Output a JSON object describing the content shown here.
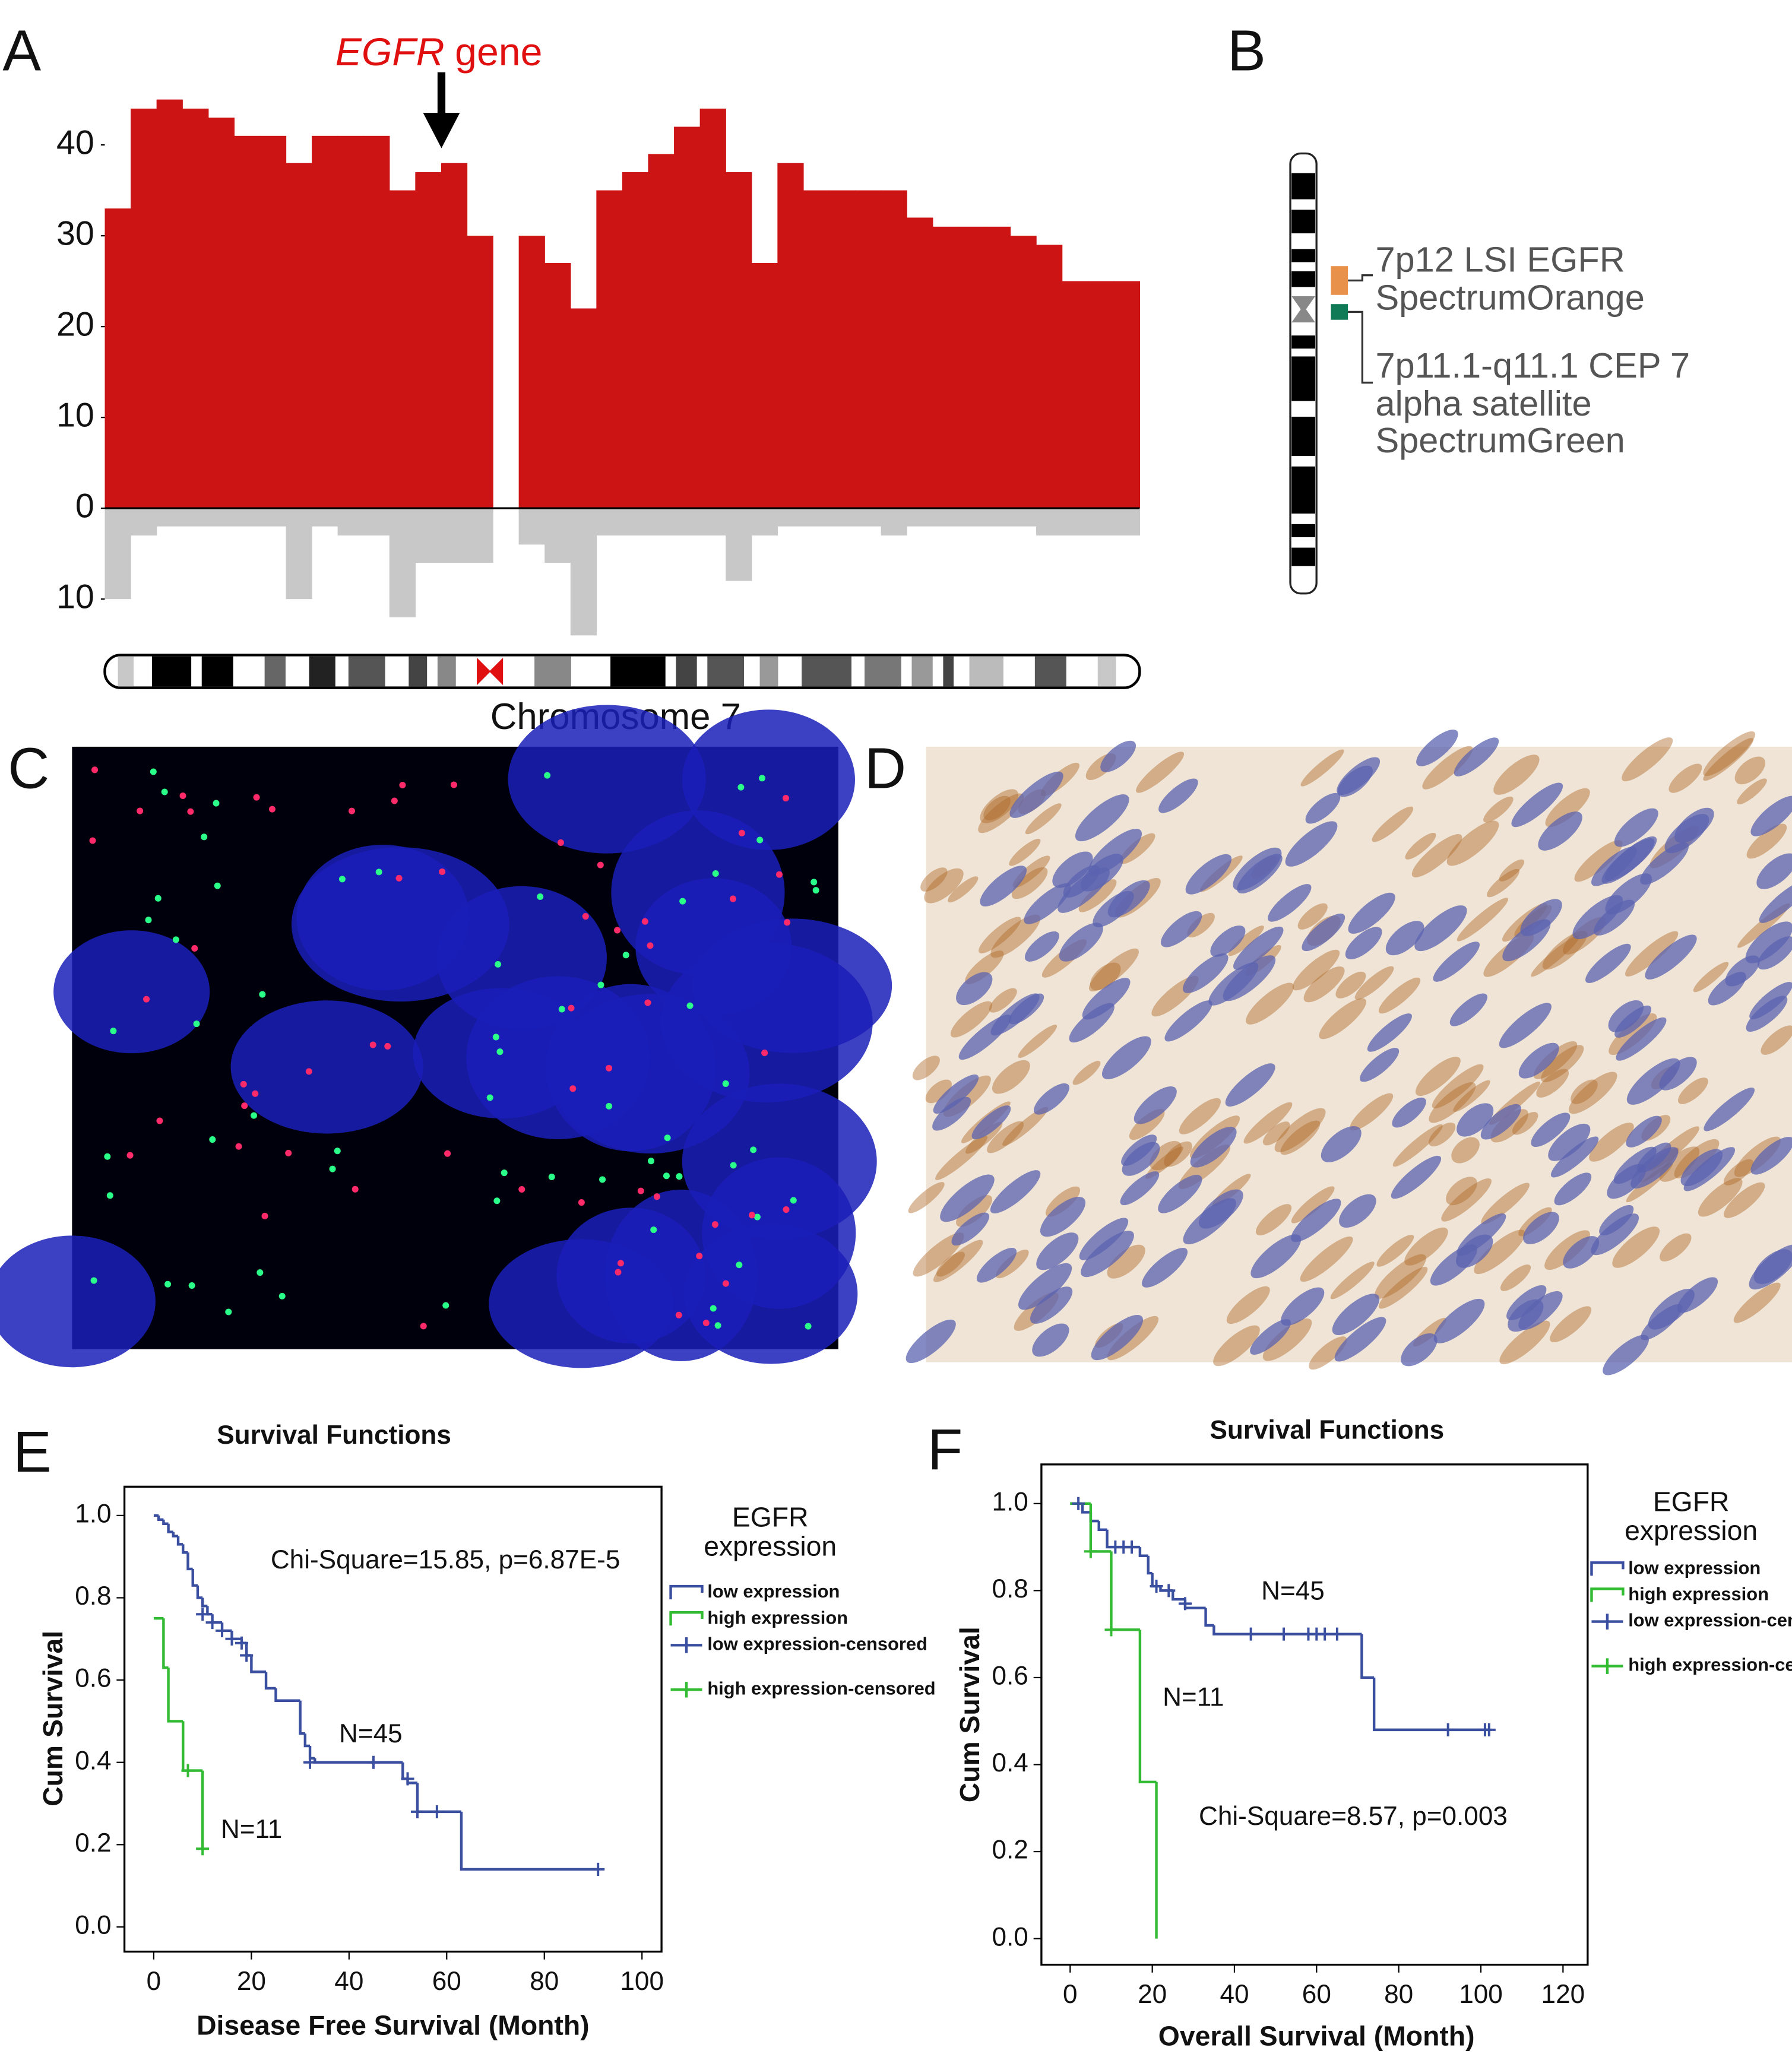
{
  "panel_labels": [
    "A",
    "B",
    "C",
    "D",
    "E",
    "F"
  ],
  "probe_diagram": {
    "probes": [
      {
        "color": "#e8914a",
        "lines": [
          "7p12 LSI EGFR",
          "SpectrumOrange"
        ]
      },
      {
        "color": "#0f7a55",
        "lines": [
          "7p11.1-q11.1 CEP 7",
          "alpha satellite",
          "SpectrumGreen"
        ]
      }
    ]
  },
  "chart_data": [
    {
      "type": "bar",
      "annotation": {
        "emphasis": "EGFR",
        "text": "gene"
      },
      "xlabel": "Chromosome 7",
      "categories": [
        null,
        null,
        null,
        null,
        null,
        null,
        null,
        null,
        null,
        null,
        null,
        null,
        null,
        null,
        null,
        null,
        null,
        null,
        null,
        null,
        null,
        null,
        null,
        null,
        null,
        null,
        null,
        null,
        null,
        null,
        null,
        null,
        null,
        null,
        null,
        null,
        null,
        null,
        null,
        null
      ],
      "series": [
        {
          "color": "#cc1414",
          "values": [
            33,
            44,
            45,
            44,
            43,
            41,
            41,
            38,
            41,
            41,
            41,
            35,
            37,
            38,
            30,
            0,
            30,
            27,
            22,
            35,
            37,
            39,
            42,
            44,
            37,
            27,
            38,
            35,
            35,
            35,
            35,
            32,
            31,
            31,
            31,
            30,
            29,
            25,
            25,
            25
          ]
        },
        {
          "color": "#c8c8c8",
          "values": [
            -10,
            -3,
            -2,
            -2,
            -2,
            -2,
            -2,
            -10,
            -2,
            -3,
            -3,
            -12,
            -6,
            -6,
            -6,
            0,
            -4,
            -6,
            -14,
            -3,
            -3,
            -3,
            -3,
            -3,
            -8,
            -3,
            -2,
            -2,
            -2,
            -2,
            -3,
            -2,
            -2,
            -2,
            -2,
            -2,
            -3,
            -3,
            -3,
            -3
          ]
        }
      ],
      "ylim": [
        -14,
        48
      ],
      "yticks": [
        {
          "value": -10,
          "label": "10"
        },
        0,
        10,
        20,
        30,
        40
      ]
    },
    {
      "type": "line",
      "step": true,
      "title": "Survival Functions",
      "xlabel": "Disease Free Survival (Month)",
      "ylabel": "Cum Survival",
      "legend_title": [
        "EGFR",
        "expression"
      ],
      "legend": "outside-right",
      "annotations": [
        "Chi-Square=15.85, p=6.87E-5",
        "N=45",
        "N=11"
      ],
      "xlim": [
        -6,
        104
      ],
      "ylim": [
        -0.06,
        1.07
      ],
      "xticks": [
        0,
        20,
        40,
        60,
        80,
        100
      ],
      "yticks": [
        {
          "value": 0,
          "label": "0.0"
        },
        0.2,
        0.4,
        0.6,
        0.8,
        {
          "value": 1,
          "label": "1.0"
        }
      ],
      "series": [
        {
          "name": "low expression",
          "color": "#3a4fa0",
          "x": [
            0,
            1,
            2,
            3,
            4,
            5,
            6,
            7,
            8,
            9,
            10,
            11,
            12,
            14,
            16,
            18,
            19,
            20,
            23,
            25,
            30,
            31,
            32,
            33,
            51,
            52,
            54,
            63,
            91
          ],
          "values": [
            1.0,
            0.99,
            0.98,
            0.96,
            0.95,
            0.93,
            0.91,
            0.87,
            0.83,
            0.8,
            0.78,
            0.76,
            0.74,
            0.72,
            0.7,
            0.69,
            0.66,
            0.62,
            0.58,
            0.55,
            0.47,
            0.44,
            0.41,
            0.4,
            0.36,
            0.35,
            0.28,
            0.14,
            0.14
          ]
        },
        {
          "name": "high expression",
          "color": "#33bb33",
          "x": [
            0,
            2,
            3,
            6,
            10
          ],
          "values": [
            0.75,
            0.63,
            0.5,
            0.38,
            0.19
          ]
        },
        {
          "name": "low expression-censored",
          "color": "#3a4fa0",
          "marker": "+",
          "x": [
            10,
            12,
            14,
            16,
            18,
            19,
            32,
            45,
            52,
            54,
            58,
            91
          ],
          "values": [
            0.76,
            0.74,
            0.72,
            0.7,
            0.69,
            0.66,
            0.4,
            0.4,
            0.36,
            0.28,
            0.28,
            0.14
          ]
        },
        {
          "name": "high expression-censored",
          "color": "#33bb33",
          "marker": "+",
          "x": [
            7,
            10
          ],
          "values": [
            0.38,
            0.19
          ]
        }
      ]
    },
    {
      "type": "line",
      "step": true,
      "title": "Survival Functions",
      "xlabel": "Overall Survival (Month)",
      "ylabel": "Cum Survival",
      "legend_title": [
        "EGFR",
        "expression"
      ],
      "legend": "outside-right",
      "annotations": [
        "N=45",
        "N=11",
        "Chi-Square=8.57, p=0.003"
      ],
      "xlim": [
        -7,
        126
      ],
      "ylim": [
        -0.06,
        1.09
      ],
      "xticks": [
        0,
        20,
        40,
        60,
        80,
        100,
        120
      ],
      "yticks": [
        {
          "value": 0,
          "label": "0.0"
        },
        0.2,
        0.4,
        0.6,
        0.8,
        {
          "value": 1,
          "label": "1.0"
        }
      ],
      "series": [
        {
          "name": "low expression",
          "color": "#3a4fa0",
          "x": [
            0,
            3,
            5,
            7,
            9,
            17,
            19,
            20,
            22,
            25,
            28,
            33,
            35,
            71,
            74,
            102
          ],
          "values": [
            1.0,
            0.98,
            0.96,
            0.94,
            0.9,
            0.88,
            0.84,
            0.81,
            0.8,
            0.78,
            0.76,
            0.72,
            0.7,
            0.6,
            0.48,
            0.48
          ]
        },
        {
          "name": "high expression",
          "color": "#33bb33",
          "x": [
            0,
            5,
            10,
            17,
            21
          ],
          "values": [
            1.0,
            0.89,
            0.71,
            0.36,
            0.0
          ]
        },
        {
          "name": "low expression-censored",
          "color": "#3a4fa0",
          "marker": "+",
          "x": [
            2,
            11,
            13,
            15,
            21,
            24,
            28,
            44,
            52,
            58,
            60,
            62,
            65,
            92,
            101,
            102
          ],
          "values": [
            1.0,
            0.9,
            0.9,
            0.9,
            0.81,
            0.8,
            0.77,
            0.7,
            0.7,
            0.7,
            0.7,
            0.7,
            0.7,
            0.48,
            0.48,
            0.48
          ]
        },
        {
          "name": "high expression-censored",
          "color": "#33bb33",
          "marker": "+",
          "x": [
            5,
            10
          ],
          "values": [
            0.89,
            0.71
          ]
        }
      ]
    }
  ]
}
